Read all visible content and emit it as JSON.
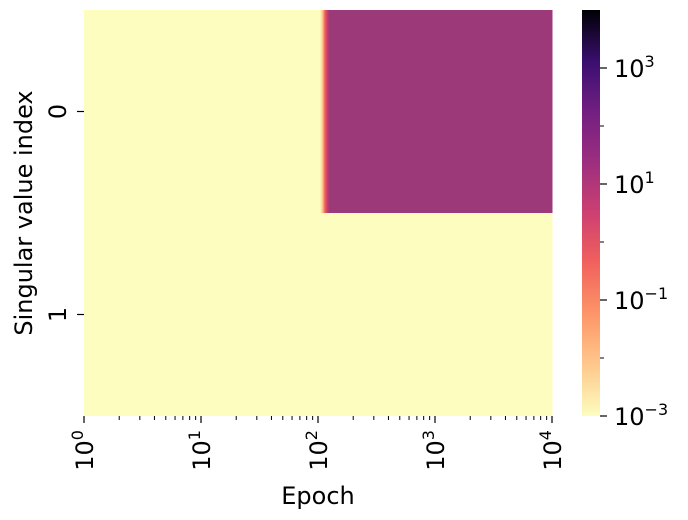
{
  "chart_data": {
    "type": "heatmap",
    "xlabel": "Epoch",
    "ylabel": "Singular value index",
    "x_scale": "log",
    "x_range": [
      1,
      10000
    ],
    "x_ticks": [
      {
        "base": "10",
        "exp": "0",
        "value": 1
      },
      {
        "base": "10",
        "exp": "1",
        "value": 10
      },
      {
        "base": "10",
        "exp": "2",
        "value": 100
      },
      {
        "base": "10",
        "exp": "3",
        "value": 1000
      },
      {
        "base": "10",
        "exp": "4",
        "value": 10000
      }
    ],
    "rows": [
      {
        "label": "0",
        "segments": [
          {
            "x0": 1,
            "x1": 104,
            "value": 0.001
          },
          {
            "x0": 104,
            "x1": 125,
            "value": "transition"
          },
          {
            "x0": 125,
            "x1": 10000,
            "value": 3
          }
        ]
      },
      {
        "label": "1",
        "segments": [
          {
            "x0": 1,
            "x1": 10000,
            "value": 0.001
          }
        ]
      }
    ],
    "colorbar": {
      "colormap": "magma_r",
      "scale": "log",
      "range": [
        0.001,
        10000
      ],
      "ticks": [
        {
          "base": "10",
          "exp": "3",
          "value": 1000
        },
        {
          "base": "10",
          "exp": "1",
          "value": 10
        },
        {
          "base": "10",
          "exp": "−1",
          "value": 0.1
        },
        {
          "base": "10",
          "exp": "−3",
          "value": 0.001
        }
      ]
    },
    "colors": {
      "low": "#fcfdbf",
      "high": "#9b3979"
    }
  }
}
